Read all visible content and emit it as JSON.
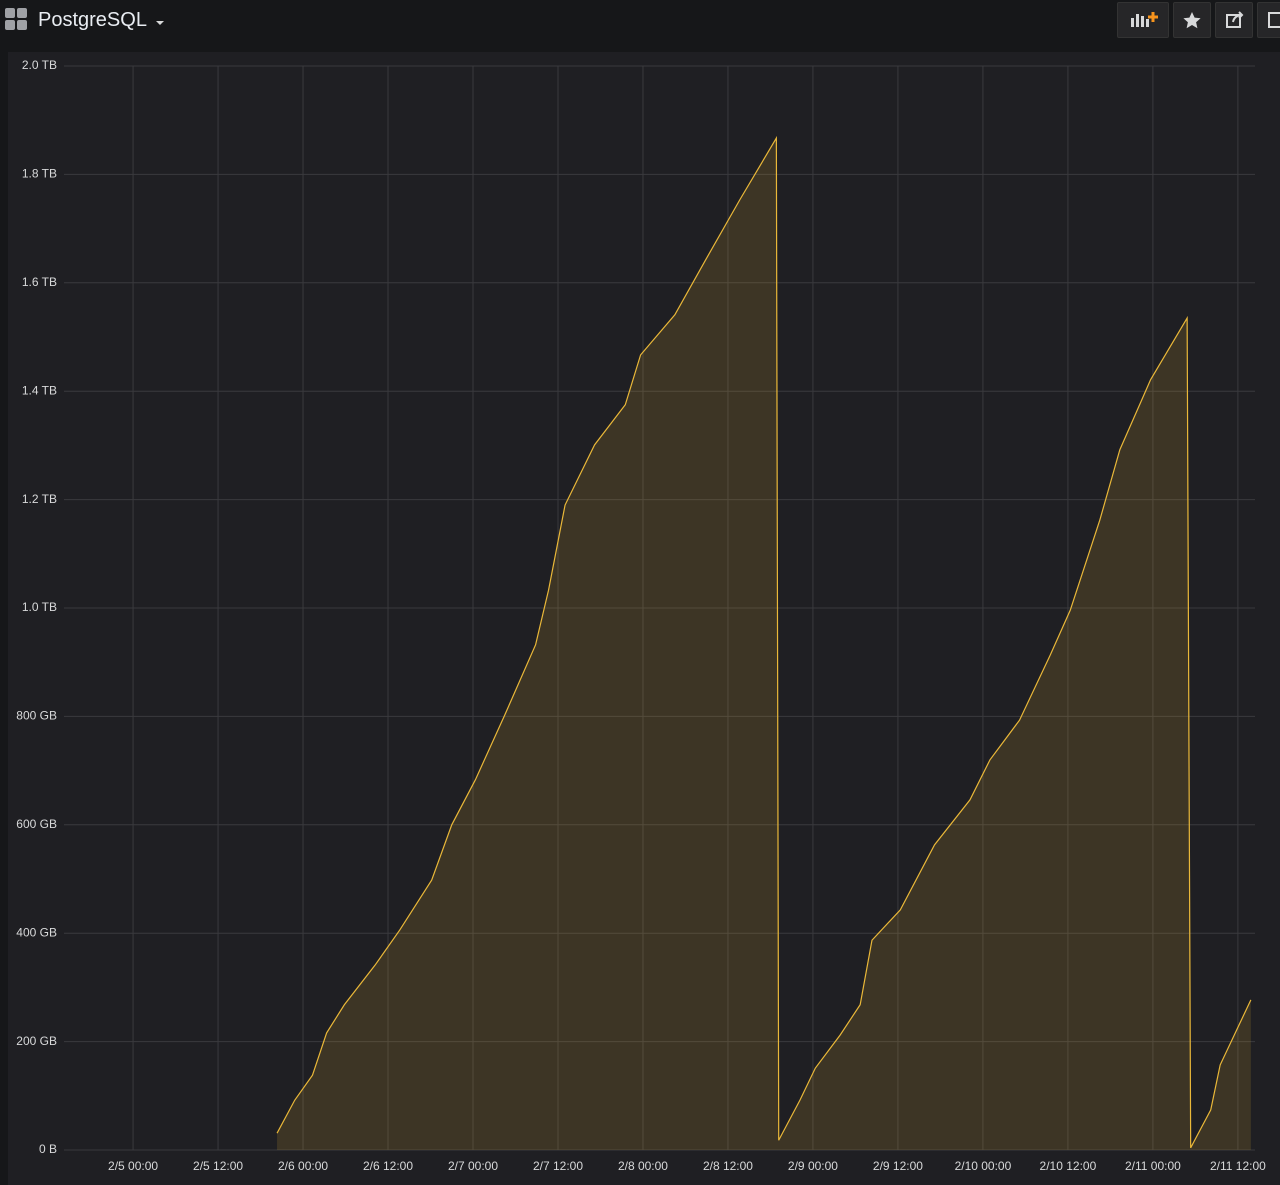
{
  "header": {
    "title": "PostgreSQL"
  },
  "chart_data": {
    "type": "area",
    "x": [
      "2/5 20:20",
      "2/5 22:50",
      "2/6 01:20",
      "2/6 03:20",
      "2/6 05:50",
      "2/6 10:10",
      "2/6 13:40",
      "2/6 18:10",
      "2/6 21:00",
      "2/7 00:20",
      "2/7 04:30",
      "2/7 08:50",
      "2/7 10:40",
      "2/7 13:00",
      "2/7 17:10",
      "2/7 21:30",
      "2/7 23:40",
      "2/8 04:30",
      "2/8 08:50",
      "2/8 13:40",
      "2/8 18:50",
      "2/8 19:10",
      "2/8 22:10",
      "2/9 00:20",
      "2/9 03:50",
      "2/9 06:40",
      "2/9 08:20",
      "2/9 12:20",
      "2/9 17:10",
      "2/9 22:10",
      "2/10 01:00",
      "2/10 05:10",
      "2/10 09:30",
      "2/10 12:20",
      "2/10 16:30",
      "2/10 19:20",
      "2/10 23:40",
      "2/11 04:50",
      "2/11 05:20",
      "2/11 08:10",
      "2/11 09:30",
      "2/11 13:50"
    ],
    "values": [
      31,
      92,
      138,
      216,
      268,
      341,
      406,
      498,
      600,
      683,
      803,
      932,
      1033,
      1190,
      1301,
      1375,
      1467,
      1541,
      1642,
      1753,
      1867,
      18,
      92,
      151,
      212,
      268,
      387,
      443,
      563,
      646,
      720,
      793,
      913,
      996,
      1162,
      1292,
      1421,
      1535,
      4,
      74,
      157,
      277
    ],
    "color": "#eab839",
    "xlim": [
      "2/4 14:15",
      "2/11 14:25"
    ],
    "xticks": [
      "2/5 00:00",
      "2/5 12:00",
      "2/6 00:00",
      "2/6 12:00",
      "2/7 00:00",
      "2/7 12:00",
      "2/8 00:00",
      "2/8 12:00",
      "2/9 00:00",
      "2/9 12:00",
      "2/10 00:00",
      "2/10 12:00",
      "2/11 00:00",
      "2/11 12:00"
    ],
    "ylim": [
      0,
      2000
    ],
    "yticks": [
      {
        "value": 0,
        "label": "0 B"
      },
      {
        "value": 200,
        "label": "200 GB"
      },
      {
        "value": 400,
        "label": "400 GB"
      },
      {
        "value": 600,
        "label": "600 GB"
      },
      {
        "value": 800,
        "label": "800 GB"
      },
      {
        "value": 1000,
        "label": "1.0 TB"
      },
      {
        "value": 1200,
        "label": "1.2 TB"
      },
      {
        "value": 1400,
        "label": "1.4 TB"
      },
      {
        "value": 1600,
        "label": "1.6 TB"
      },
      {
        "value": 1800,
        "label": "1.8 TB"
      },
      {
        "value": 2000,
        "label": "2.0 TB"
      }
    ],
    "grid": true
  }
}
